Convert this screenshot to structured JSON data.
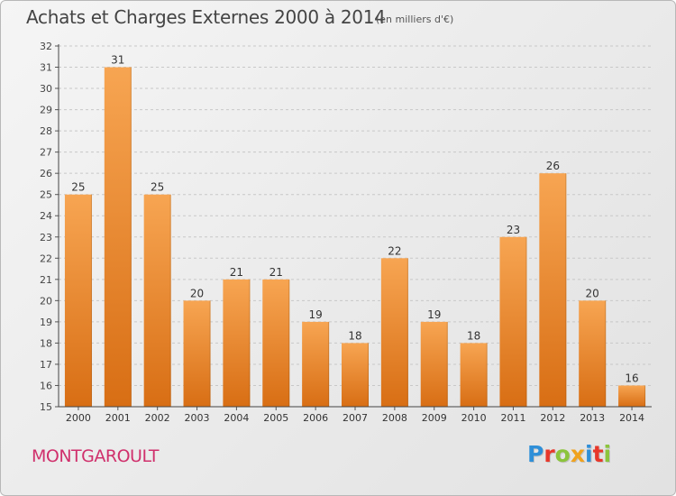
{
  "header": {
    "title": "Achats et Charges Externes 2000 à 2014",
    "unit": "(en milliers d'€)"
  },
  "footer": {
    "town": "MONTGAROULT",
    "brand": "Proxiti"
  },
  "colors": {
    "bar_top": "#f7a552",
    "bar_bottom": "#d86e14",
    "town": "#d0306c",
    "brand": [
      "#2f8fd8",
      "#e8372a",
      "#8cc43c",
      "#f0a21e",
      "#2f8fd8",
      "#e8372a",
      "#8cc43c"
    ]
  },
  "chart_data": {
    "type": "bar",
    "title": "Achats et Charges Externes 2000 à 2014",
    "subtitle": "(en milliers d'€)",
    "categories": [
      "2000",
      "2001",
      "2002",
      "2003",
      "2004",
      "2005",
      "2006",
      "2007",
      "2008",
      "2009",
      "2010",
      "2011",
      "2012",
      "2013",
      "2014"
    ],
    "values": [
      25,
      31,
      25,
      20,
      21,
      21,
      19,
      18,
      22,
      19,
      18,
      23,
      26,
      20,
      16
    ],
    "ylim": [
      15,
      32
    ],
    "yticks": [
      15,
      16,
      17,
      18,
      19,
      20,
      21,
      22,
      23,
      24,
      25,
      26,
      27,
      28,
      29,
      30,
      31,
      32
    ],
    "grid": true,
    "xlabel": "",
    "ylabel": ""
  }
}
